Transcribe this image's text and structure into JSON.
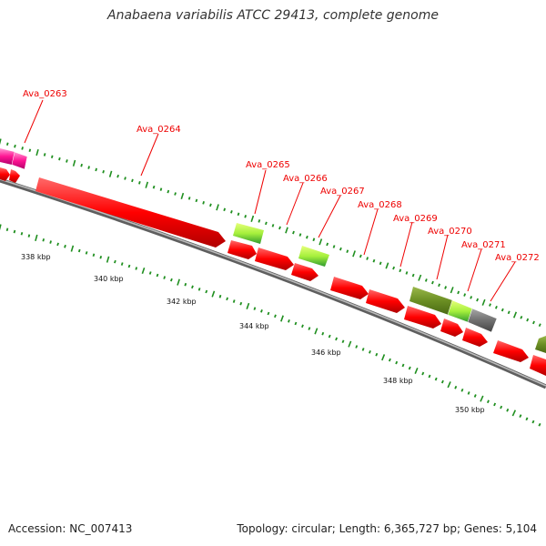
{
  "title": "Anabaena variabilis ATCC 29413, complete genome",
  "footer": {
    "accession": "Accession: NC_007413",
    "topology": "Topology: circular; Length: 6,365,727 bp; Genes: 5,104"
  },
  "colors": {
    "gene_red": "#ff0000",
    "gene_magenta": "#ff1493",
    "gene_lime": "#a6f03c",
    "gene_green": "#2faa2f",
    "gene_olive": "#6b8e23",
    "gene_gray": "#707070",
    "label_red": "#ee0000",
    "tick_green": "#1f8f1f"
  },
  "scale_labels": [
    "338 kbp",
    "340 kbp",
    "342 kbp",
    "344 kbp",
    "346 kbp",
    "348 kbp",
    "350 kbp"
  ],
  "gene_labels": [
    "Ava_0263",
    "Ava_0264",
    "Ava_0265",
    "Ava_0266",
    "Ava_0267",
    "Ava_0268",
    "Ava_0269",
    "Ava_0270",
    "Ava_0271",
    "Ava_0272"
  ]
}
